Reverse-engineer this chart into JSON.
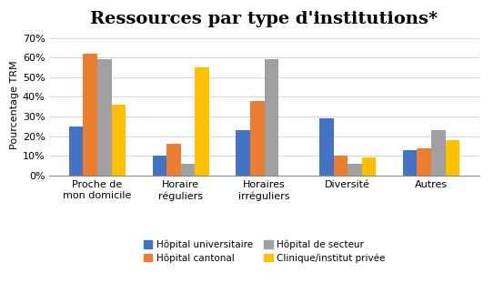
{
  "title": "Ressources par type d'institutions*",
  "ylabel": "Pourcentage TRM",
  "categories": [
    "Proche de\nmon domicile",
    "Horaire\nréguliers",
    "Horaires\nirréguliers",
    "Diversité",
    "Autres"
  ],
  "series": {
    "Hôpital universitaire": [
      0.25,
      0.1,
      0.23,
      0.29,
      0.13
    ],
    "Hôpital cantonal": [
      0.62,
      0.16,
      0.38,
      0.1,
      0.14
    ],
    "Hôpital de secteur": [
      0.59,
      0.06,
      0.59,
      0.06,
      0.23
    ],
    "Clinique/institut privée": [
      0.36,
      0.55,
      0.0,
      0.09,
      0.18
    ]
  },
  "colors": {
    "Hôpital universitaire": "#4472C4",
    "Hôpital cantonal": "#ED7D31",
    "Hôpital de secteur": "#A0A0A0",
    "Clinique/institut privée": "#FFC000"
  },
  "legend_order": [
    "Hôpital universitaire",
    "Hôpital cantonal",
    "Hôpital de secteur",
    "Clinique/institut privée"
  ],
  "ylim": [
    0,
    0.72
  ],
  "yticks": [
    0.0,
    0.1,
    0.2,
    0.3,
    0.4,
    0.5,
    0.6,
    0.7
  ],
  "ytick_labels": [
    "0%",
    "10%",
    "20%",
    "30%",
    "40%",
    "50%",
    "60%",
    "70%"
  ],
  "bar_width": 0.17,
  "title_fontsize": 14,
  "axis_fontsize": 8,
  "tick_fontsize": 8,
  "legend_fontsize": 7.5
}
